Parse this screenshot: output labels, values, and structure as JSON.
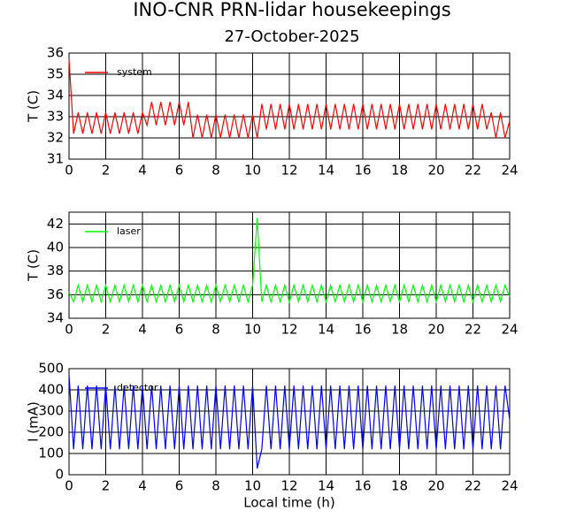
{
  "title": "INO-CNR PRN-lidar housekeepings",
  "subtitle": "27-October-2025",
  "chart_data": [
    {
      "type": "line",
      "ylabel": "T (C)",
      "grid": true,
      "legend": "upper-left",
      "x": [
        0,
        0.25,
        0.5,
        0.75,
        1,
        1.25,
        1.5,
        1.75,
        2,
        2.25,
        2.5,
        2.75,
        3,
        3.25,
        3.5,
        3.75,
        4,
        4.25,
        4.5,
        4.75,
        5,
        5.25,
        5.5,
        5.75,
        6,
        6.25,
        6.5,
        6.75,
        7,
        7.25,
        7.5,
        7.75,
        8,
        8.25,
        8.5,
        8.75,
        9,
        9.25,
        9.5,
        9.75,
        10,
        10.25,
        10.5,
        10.75,
        11,
        11.25,
        11.5,
        11.75,
        12,
        12.25,
        12.5,
        12.75,
        13,
        13.25,
        13.5,
        13.75,
        14,
        14.25,
        14.5,
        14.75,
        15,
        15.25,
        15.5,
        15.75,
        16,
        16.25,
        16.5,
        16.75,
        17,
        17.25,
        17.5,
        17.75,
        18,
        18.25,
        18.5,
        18.75,
        19,
        19.25,
        19.5,
        19.75,
        20,
        20.25,
        20.5,
        20.75,
        21,
        21.25,
        21.5,
        21.75,
        22,
        22.25,
        22.5,
        22.75,
        23,
        23.25,
        23.5,
        23.75,
        24
      ],
      "series": [
        {
          "name": "system",
          "color": "#ff0000",
          "values": [
            35.7,
            32.2,
            33.2,
            32.2,
            33.2,
            32.2,
            33.2,
            32.2,
            33.2,
            32.2,
            33.2,
            32.2,
            33.2,
            32.2,
            33.2,
            32.2,
            33.2,
            32.6,
            33.7,
            32.6,
            33.7,
            32.6,
            33.7,
            32.6,
            33.7,
            32.6,
            33.7,
            32.0,
            33.1,
            32.0,
            33.1,
            32.0,
            33.1,
            32.0,
            33.1,
            32.0,
            33.1,
            32.0,
            33.1,
            32.0,
            33.1,
            32.0,
            33.6,
            32.4,
            33.6,
            32.4,
            33.6,
            32.4,
            33.6,
            32.4,
            33.6,
            32.4,
            33.6,
            32.4,
            33.6,
            32.4,
            33.6,
            32.4,
            33.6,
            32.4,
            33.6,
            32.4,
            33.6,
            32.4,
            33.6,
            32.4,
            33.6,
            32.4,
            33.6,
            32.4,
            33.6,
            32.4,
            33.6,
            32.4,
            33.6,
            32.4,
            33.6,
            32.4,
            33.6,
            32.4,
            33.6,
            32.4,
            33.6,
            32.4,
            33.6,
            32.4,
            33.6,
            32.4,
            33.6,
            32.4,
            33.6,
            32.4,
            33.2,
            32.0,
            33.2,
            32.0,
            32.8
          ]
        }
      ],
      "xlim": [
        0,
        24
      ],
      "xticks": [
        0,
        2,
        4,
        6,
        8,
        10,
        12,
        14,
        16,
        18,
        20,
        22,
        24
      ],
      "ylim": [
        31,
        36
      ],
      "yticks": [
        31,
        32,
        33,
        34,
        35,
        36
      ]
    },
    {
      "type": "line",
      "ylabel": "T (C)",
      "grid": true,
      "legend": "upper-left",
      "x": [
        0,
        0.25,
        0.5,
        0.75,
        1,
        1.25,
        1.5,
        1.75,
        2,
        2.25,
        2.5,
        2.75,
        3,
        3.25,
        3.5,
        3.75,
        4,
        4.25,
        4.5,
        4.75,
        5,
        5.25,
        5.5,
        5.75,
        6,
        6.25,
        6.5,
        6.75,
        7,
        7.25,
        7.5,
        7.75,
        8,
        8.25,
        8.5,
        8.75,
        9,
        9.25,
        9.5,
        9.75,
        10,
        10.25,
        10.5,
        10.75,
        11,
        11.25,
        11.5,
        11.75,
        12,
        12.25,
        12.5,
        12.75,
        13,
        13.25,
        13.5,
        13.75,
        14,
        14.25,
        14.5,
        14.75,
        15,
        15.25,
        15.5,
        15.75,
        16,
        16.25,
        16.5,
        16.75,
        17,
        17.25,
        17.5,
        17.75,
        18,
        18.25,
        18.5,
        18.75,
        19,
        19.25,
        19.5,
        19.75,
        20,
        20.25,
        20.5,
        20.75,
        21,
        21.25,
        21.5,
        21.75,
        22,
        22.25,
        22.5,
        22.75,
        23,
        23.25,
        23.5,
        23.75,
        24
      ],
      "series": [
        {
          "name": "laser",
          "color": "#00ff00",
          "values": [
            36.2,
            35.4,
            36.8,
            35.4,
            36.8,
            35.4,
            36.8,
            35.4,
            36.8,
            35.4,
            36.8,
            35.4,
            36.8,
            35.4,
            36.8,
            35.4,
            36.8,
            35.4,
            36.8,
            35.4,
            36.8,
            35.4,
            36.8,
            35.4,
            36.8,
            35.4,
            36.8,
            35.4,
            36.8,
            35.4,
            36.8,
            35.4,
            36.8,
            35.4,
            36.8,
            35.4,
            36.8,
            35.4,
            36.8,
            35.4,
            36.8,
            42.5,
            35.4,
            36.8,
            35.4,
            36.8,
            35.4,
            36.8,
            35.4,
            36.8,
            35.4,
            36.8,
            35.4,
            36.8,
            35.4,
            36.8,
            35.4,
            36.8,
            35.4,
            36.8,
            35.4,
            36.8,
            35.4,
            36.8,
            35.4,
            36.8,
            35.4,
            36.8,
            35.4,
            36.8,
            35.4,
            36.8,
            35.4,
            36.8,
            35.4,
            36.8,
            35.4,
            36.8,
            35.4,
            36.8,
            35.4,
            36.8,
            35.4,
            36.8,
            35.4,
            36.8,
            35.4,
            36.8,
            35.4,
            36.8,
            35.4,
            36.8,
            35.4,
            36.8,
            35.4,
            36.8,
            35.8
          ]
        }
      ],
      "xlim": [
        0,
        24
      ],
      "xticks": [
        0,
        2,
        4,
        6,
        8,
        10,
        12,
        14,
        16,
        18,
        20,
        22,
        24
      ],
      "ylim": [
        34,
        43
      ],
      "yticks": [
        34,
        36,
        38,
        40,
        42
      ]
    },
    {
      "type": "line",
      "ylabel": "I (mA)",
      "xlabel": "Local time (h)",
      "grid": true,
      "legend": "upper-left",
      "x": [
        0,
        0.25,
        0.5,
        0.75,
        1,
        1.25,
        1.5,
        1.75,
        2,
        2.25,
        2.5,
        2.75,
        3,
        3.25,
        3.5,
        3.75,
        4,
        4.25,
        4.5,
        4.75,
        5,
        5.25,
        5.5,
        5.75,
        6,
        6.25,
        6.5,
        6.75,
        7,
        7.25,
        7.5,
        7.75,
        8,
        8.25,
        8.5,
        8.75,
        9,
        9.25,
        9.5,
        9.75,
        10,
        10.25,
        10.5,
        10.75,
        11,
        11.25,
        11.5,
        11.75,
        12,
        12.25,
        12.5,
        12.75,
        13,
        13.25,
        13.5,
        13.75,
        14,
        14.25,
        14.5,
        14.75,
        15,
        15.25,
        15.5,
        15.75,
        16,
        16.25,
        16.5,
        16.75,
        17,
        17.25,
        17.5,
        17.75,
        18,
        18.25,
        18.5,
        18.75,
        19,
        19.25,
        19.5,
        19.75,
        20,
        20.25,
        20.5,
        20.75,
        21,
        21.25,
        21.5,
        21.75,
        22,
        22.25,
        22.5,
        22.75,
        23,
        23.25,
        23.5,
        23.75,
        24
      ],
      "series": [
        {
          "name": "detector",
          "color": "#0000ff",
          "values": [
            470,
            120,
            420,
            120,
            420,
            120,
            420,
            120,
            420,
            120,
            420,
            120,
            420,
            120,
            420,
            120,
            420,
            120,
            420,
            120,
            420,
            120,
            420,
            120,
            420,
            120,
            420,
            120,
            420,
            120,
            420,
            120,
            420,
            120,
            420,
            120,
            420,
            120,
            420,
            120,
            420,
            30,
            120,
            420,
            120,
            420,
            120,
            420,
            120,
            420,
            120,
            420,
            120,
            420,
            120,
            420,
            120,
            420,
            120,
            420,
            120,
            420,
            120,
            420,
            120,
            420,
            120,
            420,
            120,
            420,
            120,
            420,
            120,
            420,
            120,
            420,
            120,
            420,
            120,
            420,
            120,
            420,
            120,
            420,
            120,
            420,
            120,
            420,
            120,
            420,
            120,
            420,
            120,
            420,
            120,
            420,
            260
          ]
        }
      ],
      "xlim": [
        0,
        24
      ],
      "xticks": [
        0,
        2,
        4,
        6,
        8,
        10,
        12,
        14,
        16,
        18,
        20,
        22,
        24
      ],
      "ylim": [
        0,
        500
      ],
      "yticks": [
        0,
        100,
        200,
        300,
        400,
        500
      ]
    }
  ]
}
